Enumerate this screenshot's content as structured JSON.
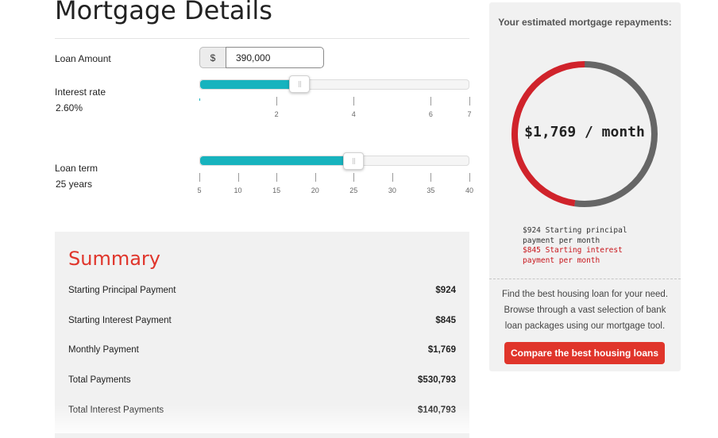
{
  "page": {
    "title": "Mortgage Details"
  },
  "loan_amount": {
    "label": "Loan Amount",
    "currency_symbol": "$",
    "value": "390,000"
  },
  "interest_rate": {
    "label": "Interest rate",
    "value_text": "2.60%",
    "value": 2.6,
    "min": 0,
    "max": 7,
    "tick_labels": [
      "2",
      "4",
      "6",
      "7"
    ]
  },
  "loan_term": {
    "label": "Loan term",
    "value_text": "25 years",
    "value": 25,
    "min": 5,
    "max": 40,
    "tick_labels": [
      "5",
      "10",
      "15",
      "20",
      "25",
      "30",
      "35",
      "40"
    ]
  },
  "summary": {
    "title": "Summary",
    "rows": [
      {
        "label": "Starting Principal Payment",
        "value": "$924"
      },
      {
        "label": "Starting Interest Payment",
        "value": "$845"
      },
      {
        "label": "Monthly Payment",
        "value": "$1,769"
      },
      {
        "label": "Total Payments",
        "value": "$530,793"
      },
      {
        "label": "Total Interest Payments",
        "value": "$140,793"
      }
    ]
  },
  "estimate": {
    "heading": "Your estimated mortgage repayments:",
    "monthly_text": "$1,769 / month",
    "principal_monthly": 924,
    "interest_monthly": 845,
    "principal_note": "$924 Starting principal payment per month",
    "interest_note": "$845 Starting interest payment per month",
    "principal_color": "#666666",
    "interest_color": "#d0232b"
  },
  "promo": {
    "text": "Find the best housing loan for your need. Browse through a vast selection of bank loan packages using our mortgage tool.",
    "cta_label": "Compare the best housing loans"
  },
  "colors": {
    "accent_red": "#e0352b",
    "slider_fill": "#17b3be"
  }
}
